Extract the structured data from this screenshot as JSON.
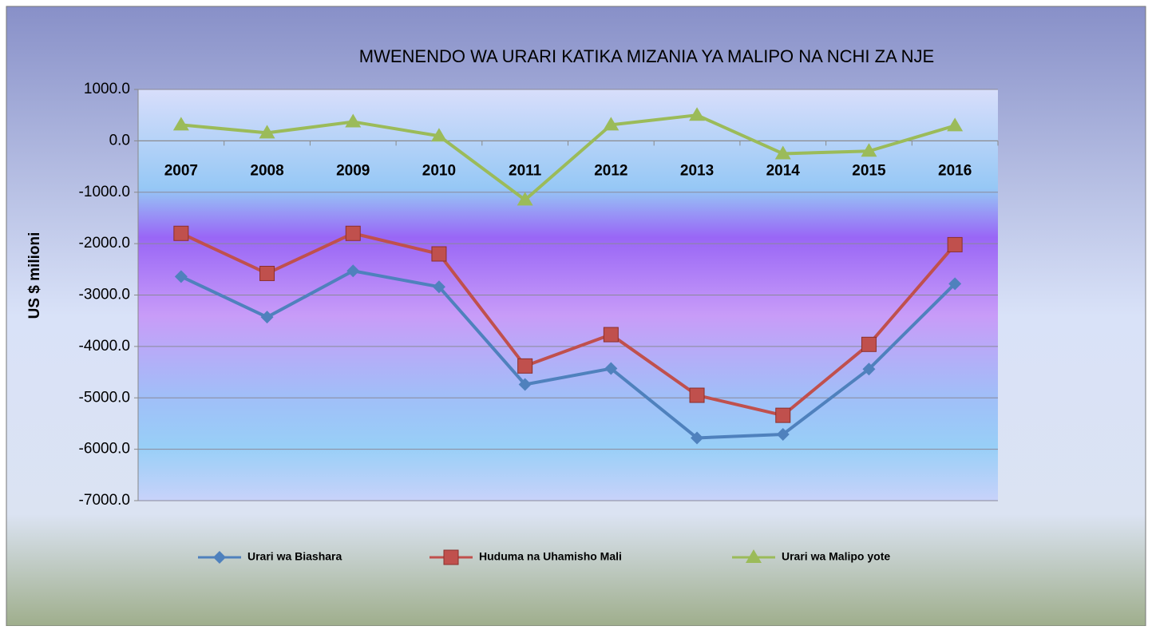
{
  "chart_data": {
    "type": "line",
    "title": "MWENENDO WA URARI KATIKA MIZANIA YA MALIPO NA NCHI ZA NJE",
    "y_label": "US $ milioni",
    "categories": [
      "2007",
      "2008",
      "2009",
      "2010",
      "2011",
      "2012",
      "2013",
      "2014",
      "2015",
      "2016"
    ],
    "series": [
      {
        "name": "Urari wa Biashara",
        "color": "#4f81bd",
        "marker": "diamond",
        "values": [
          -2640,
          -3430,
          -2530,
          -2840,
          -4740,
          -4430,
          -5780,
          -5710,
          -4440,
          -2780
        ]
      },
      {
        "name": "Huduma na Uhamisho Mali",
        "color": "#c0504d",
        "marker": "square",
        "values": [
          -1800,
          -2580,
          -1800,
          -2200,
          -4380,
          -3770,
          -4950,
          -5340,
          -3960,
          -2020
        ]
      },
      {
        "name": "Urari wa Malipo yote",
        "color": "#9bbb59",
        "marker": "triangle",
        "values": [
          310,
          155,
          370,
          95,
          -1150,
          310,
          500,
          -250,
          -200,
          295
        ]
      }
    ],
    "ylim": [
      -7000,
      1000
    ],
    "yticks": [
      {
        "value": 1000,
        "label": "1000.0"
      },
      {
        "value": 0,
        "label": "0.0"
      },
      {
        "value": -1000,
        "label": "-1000.0"
      },
      {
        "value": -2000,
        "label": "-2000.0"
      },
      {
        "value": -3000,
        "label": "-3000.0"
      },
      {
        "value": -4000,
        "label": "-4000.0"
      },
      {
        "value": -5000,
        "label": "-5000.0"
      },
      {
        "value": -6000,
        "label": "-6000.0"
      },
      {
        "value": -7000,
        "label": "-7000.0"
      }
    ],
    "grid": true,
    "legend": "bottom"
  }
}
